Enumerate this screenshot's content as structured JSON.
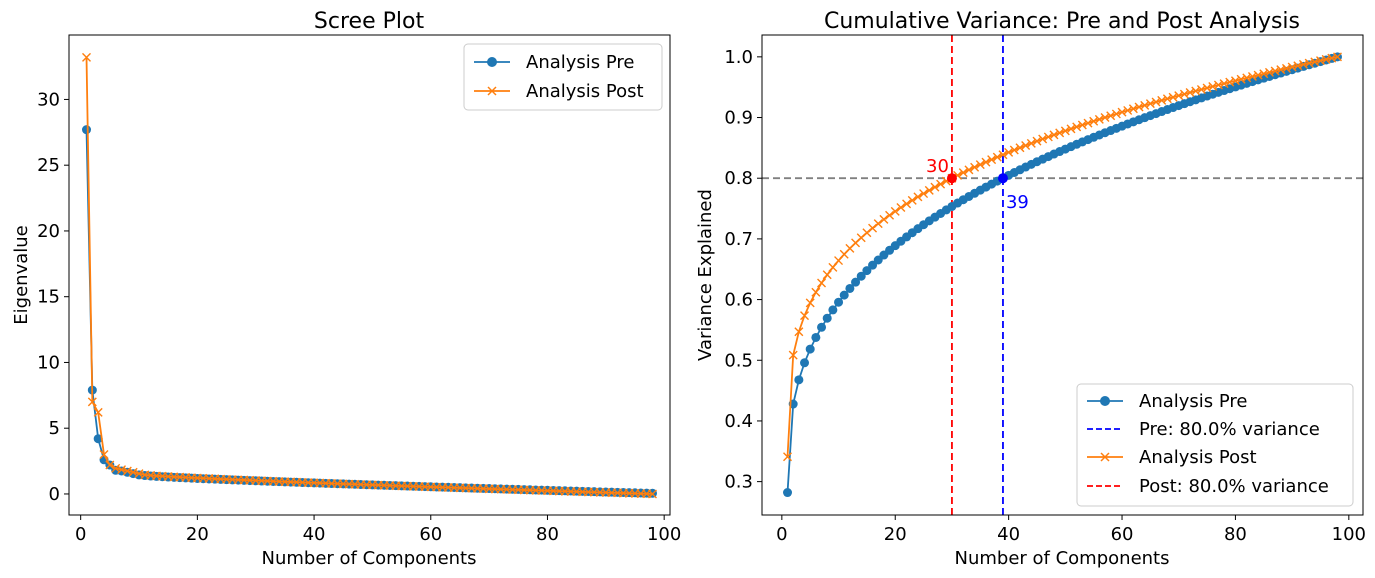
{
  "chart_data": [
    {
      "type": "line",
      "title": "Scree Plot",
      "xlabel": "Number of Components",
      "ylabel": "Eigenvalue",
      "xlim": [
        -2,
        101
      ],
      "ylim": [
        -1.6,
        34.9
      ],
      "xticks": [
        0,
        20,
        40,
        60,
        80,
        100
      ],
      "yticks": [
        0,
        5,
        10,
        15,
        20,
        25,
        30
      ],
      "grid": false,
      "legend": "top-right",
      "x_range": [
        1,
        98
      ],
      "series": [
        {
          "name": "Analysis Pre",
          "color": "#1f77b4",
          "marker": "circle",
          "head": [
            27.7,
            7.9,
            4.2,
            2.6,
            2.2,
            1.8,
            1.75,
            1.65,
            1.55,
            1.45
          ],
          "tail_start": 1.4,
          "tail_end": 0.05
        },
        {
          "name": "Analysis Post",
          "color": "#ff7f0e",
          "marker": "x",
          "head": [
            33.2,
            7.0,
            6.2,
            3.0,
            2.2,
            1.95,
            1.85,
            1.75,
            1.65,
            1.55
          ],
          "tail_start": 1.45,
          "tail_end": 0.0
        }
      ]
    },
    {
      "type": "line",
      "title": "Cumulative Variance: Pre and Post Analysis",
      "xlabel": "Number of Components",
      "ylabel": "Variance Explained",
      "xlim": [
        -3.5,
        102.5
      ],
      "ylim": [
        0.245,
        1.036
      ],
      "xticks": [
        0,
        20,
        40,
        60,
        80,
        100
      ],
      "yticks": [
        0.3,
        0.4,
        0.5,
        0.6,
        0.7,
        0.8,
        0.9,
        1.0
      ],
      "grid": false,
      "legend": "bottom-right",
      "x_range": [
        1,
        98
      ],
      "threshold": 0.8,
      "series": [
        {
          "name": "Analysis Pre",
          "color": "#1f77b4",
          "marker": "circle",
          "start": 0.282,
          "at_threshold": 39,
          "end": 1.0
        },
        {
          "name": "Analysis Post",
          "color": "#ff7f0e",
          "marker": "x",
          "start": 0.341,
          "at_threshold": 30,
          "end": 1.0
        }
      ],
      "vlines": [
        {
          "name": "Pre: 80.0% variance",
          "x": 39,
          "color": "#0000ff",
          "label": "39"
        },
        {
          "name": "Post: 80.0% variance",
          "x": 30,
          "color": "#ff0000",
          "label": "30"
        }
      ],
      "legend_entries": [
        "Analysis Pre",
        "Pre: 80.0% variance",
        "Analysis Post",
        "Post: 80.0% variance"
      ]
    }
  ]
}
